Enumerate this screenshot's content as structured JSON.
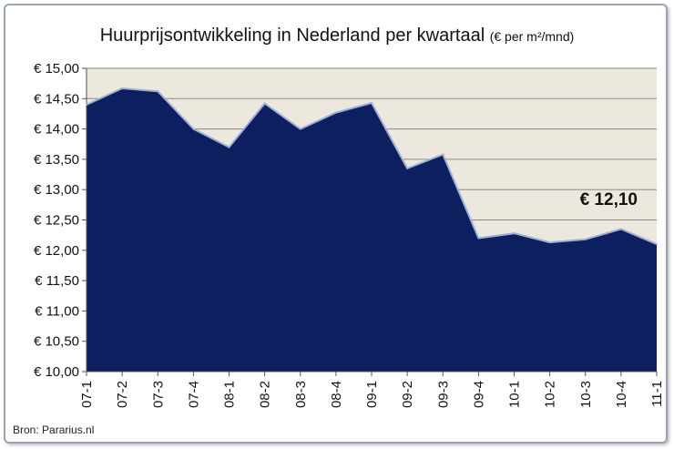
{
  "title": "Huurprijsontwikkeling in Nederland per kwartaal",
  "title_unit": "(€ per m²/mnd)",
  "source": "Bron: Pararius.nl",
  "annotation": "€ 12,10",
  "colors": {
    "area": "#0d1f5e",
    "plot_bg": "#ede8dd",
    "line": "#9eb0d6"
  },
  "chart_data": {
    "type": "area",
    "title": "Huurprijsontwikkeling in Nederland per kwartaal",
    "categories": [
      "07-1",
      "07-2",
      "07-3",
      "07-4",
      "08-1",
      "08-2",
      "08-3",
      "08-4",
      "09-1",
      "09-2",
      "09-3",
      "09-4",
      "10-1",
      "10-2",
      "10-3",
      "10-4",
      "11-1"
    ],
    "values": [
      14.4,
      14.67,
      14.62,
      14.0,
      13.7,
      14.42,
      14.0,
      14.27,
      14.43,
      13.35,
      13.58,
      12.2,
      12.28,
      12.13,
      12.18,
      12.35,
      12.1
    ],
    "ylim": [
      10.0,
      15.0
    ],
    "yticks": [
      15.0,
      14.5,
      14.0,
      13.5,
      13.0,
      12.5,
      12.0,
      11.5,
      11.0,
      10.5,
      10.0
    ],
    "ytick_labels": [
      "€ 15,00",
      "€ 14,50",
      "€ 14,00",
      "€ 13,50",
      "€ 13,00",
      "€ 12,50",
      "€ 12,00",
      "€ 11,50",
      "€ 11,00",
      "€ 10,50",
      "€ 10,00"
    ],
    "grid": true,
    "legend": "none"
  }
}
